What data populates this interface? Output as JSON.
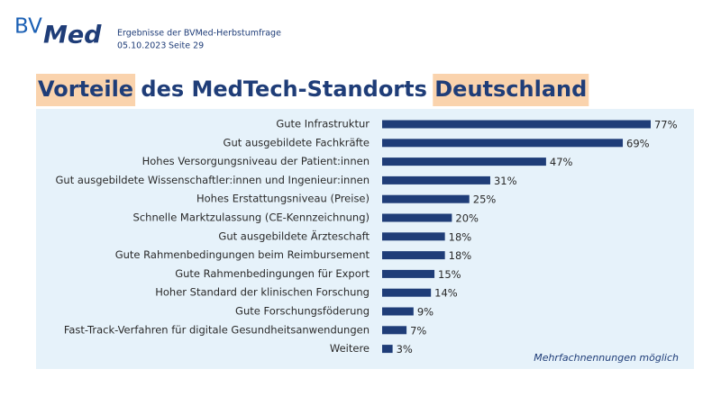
{
  "header": {
    "logo": [
      "BV",
      "Med"
    ],
    "subtitle": "Ergebnisse der BVMed-Herbstumfrage",
    "date": "05.10.2023",
    "page": "Seite 29"
  },
  "chart_data": {
    "type": "hbar",
    "title": "Vorteile des MedTech-Standorts Deutschland",
    "categories": [
      "Gute Infrastruktur",
      "Gut ausgebildete Fachkräfte",
      "Hohes Versorgungsniveau der Patient:innen",
      "Gut ausgebildete Wissenschaftler:innen und Ingenieur:innen",
      "Hohes Erstattungsniveau (Preise)",
      "Schnelle Marktzulassung (CE-Kennzeichnung)",
      "Gut ausgebildete Ärzteschaft",
      "Gute Rahmenbedingungen beim Reimbursement",
      "Gute Rahmenbedingungen für Export",
      "Hoher Standard der klinischen Forschung",
      "Gute Forschungsföderung",
      "Fast-Track-Verfahren für digitale Gesundheitsanwendungen",
      "Weitere"
    ],
    "values": [
      77,
      69,
      47,
      31,
      25,
      20,
      18,
      18,
      15,
      14,
      9,
      7,
      3
    ],
    "value_labels": [
      "77%",
      "69%",
      "47%",
      "31%",
      "25%",
      "20%",
      "18%",
      "18%",
      "15%",
      "14%",
      "9%",
      "7%",
      "3%"
    ],
    "color": "#1f3d78",
    "annotation": "Mehrfachnennungen möglich"
  }
}
